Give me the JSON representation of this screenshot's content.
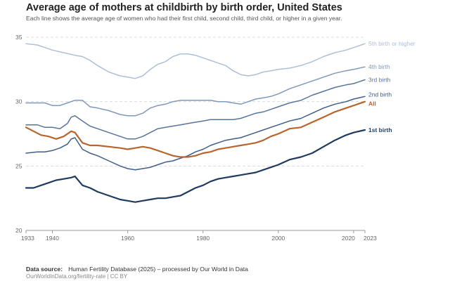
{
  "header": {
    "title": "Average age of mothers at childbirth by birth order, United States",
    "subtitle": "Each line shows the average age of women who had their first child, second child, third child, or higher in a given year."
  },
  "footer": {
    "source_label": "Data source:",
    "source_text": "Human Fertility Database (2025) – processed by Our World in Data",
    "link_text": "OurWorldInData.org/fertility-rate | CC BY"
  },
  "chart_data": {
    "type": "line",
    "title": "Average age of mothers at childbirth by birth order, United States",
    "xlabel": "",
    "ylabel": "",
    "xlim": [
      1933,
      2023
    ],
    "ylim": [
      20,
      35
    ],
    "x_ticks": [
      1933,
      1940,
      1960,
      1980,
      2000,
      2020,
      2023
    ],
    "y_ticks": [
      20,
      25,
      30,
      35
    ],
    "grid": "horizontal dashed",
    "legend": "line labels at right end",
    "series": [
      {
        "name": "5th birth or higher",
        "color": "#aebfd6",
        "points": [
          [
            1933,
            34.5
          ],
          [
            1936,
            34.4
          ],
          [
            1938,
            34.2
          ],
          [
            1940,
            34.0
          ],
          [
            1943,
            33.8
          ],
          [
            1946,
            33.6
          ],
          [
            1948,
            33.5
          ],
          [
            1950,
            33.2
          ],
          [
            1952,
            32.8
          ],
          [
            1955,
            32.3
          ],
          [
            1958,
            32.0
          ],
          [
            1960,
            31.9
          ],
          [
            1962,
            31.8
          ],
          [
            1964,
            32.0
          ],
          [
            1966,
            32.5
          ],
          [
            1968,
            32.9
          ],
          [
            1970,
            33.1
          ],
          [
            1972,
            33.5
          ],
          [
            1974,
            33.7
          ],
          [
            1976,
            33.7
          ],
          [
            1978,
            33.6
          ],
          [
            1980,
            33.4
          ],
          [
            1982,
            33.2
          ],
          [
            1984,
            33.0
          ],
          [
            1986,
            32.8
          ],
          [
            1988,
            32.4
          ],
          [
            1990,
            32.1
          ],
          [
            1992,
            32.0
          ],
          [
            1994,
            32.1
          ],
          [
            1996,
            32.3
          ],
          [
            1998,
            32.4
          ],
          [
            2000,
            32.5
          ],
          [
            2003,
            32.6
          ],
          [
            2006,
            32.8
          ],
          [
            2009,
            33.1
          ],
          [
            2012,
            33.5
          ],
          [
            2015,
            33.8
          ],
          [
            2018,
            34.0
          ],
          [
            2020,
            34.2
          ],
          [
            2023,
            34.5
          ]
        ]
      },
      {
        "name": "4th birth",
        "color": "#7f98ba",
        "points": [
          [
            1933,
            29.9
          ],
          [
            1935,
            29.9
          ],
          [
            1938,
            29.9
          ],
          [
            1940,
            29.7
          ],
          [
            1942,
            29.7
          ],
          [
            1944,
            29.9
          ],
          [
            1946,
            30.1
          ],
          [
            1948,
            30.1
          ],
          [
            1950,
            29.6
          ],
          [
            1952,
            29.5
          ],
          [
            1955,
            29.3
          ],
          [
            1958,
            29.0
          ],
          [
            1960,
            28.9
          ],
          [
            1962,
            28.9
          ],
          [
            1964,
            29.1
          ],
          [
            1966,
            29.5
          ],
          [
            1968,
            29.7
          ],
          [
            1970,
            29.8
          ],
          [
            1972,
            30.0
          ],
          [
            1974,
            30.1
          ],
          [
            1976,
            30.1
          ],
          [
            1978,
            30.1
          ],
          [
            1980,
            30.1
          ],
          [
            1982,
            30.1
          ],
          [
            1984,
            30.0
          ],
          [
            1986,
            30.0
          ],
          [
            1988,
            29.9
          ],
          [
            1990,
            29.8
          ],
          [
            1992,
            30.0
          ],
          [
            1994,
            30.2
          ],
          [
            1996,
            30.3
          ],
          [
            1998,
            30.4
          ],
          [
            2000,
            30.6
          ],
          [
            2003,
            31.0
          ],
          [
            2006,
            31.3
          ],
          [
            2009,
            31.6
          ],
          [
            2012,
            31.9
          ],
          [
            2015,
            32.2
          ],
          [
            2018,
            32.4
          ],
          [
            2020,
            32.5
          ],
          [
            2023,
            32.7
          ]
        ]
      },
      {
        "name": "3rd birth",
        "color": "#58749b",
        "points": [
          [
            1933,
            28.2
          ],
          [
            1936,
            28.2
          ],
          [
            1938,
            28.0
          ],
          [
            1940,
            28.0
          ],
          [
            1942,
            27.9
          ],
          [
            1944,
            28.3
          ],
          [
            1945,
            28.8
          ],
          [
            1946,
            28.9
          ],
          [
            1948,
            28.5
          ],
          [
            1950,
            28.1
          ],
          [
            1952,
            27.9
          ],
          [
            1955,
            27.6
          ],
          [
            1958,
            27.3
          ],
          [
            1960,
            27.1
          ],
          [
            1962,
            27.1
          ],
          [
            1964,
            27.3
          ],
          [
            1966,
            27.6
          ],
          [
            1968,
            27.9
          ],
          [
            1970,
            28.0
          ],
          [
            1972,
            28.1
          ],
          [
            1974,
            28.2
          ],
          [
            1976,
            28.3
          ],
          [
            1978,
            28.4
          ],
          [
            1980,
            28.5
          ],
          [
            1982,
            28.6
          ],
          [
            1984,
            28.6
          ],
          [
            1986,
            28.6
          ],
          [
            1988,
            28.6
          ],
          [
            1990,
            28.7
          ],
          [
            1992,
            28.9
          ],
          [
            1994,
            29.1
          ],
          [
            1996,
            29.2
          ],
          [
            1998,
            29.4
          ],
          [
            2000,
            29.6
          ],
          [
            2003,
            29.9
          ],
          [
            2006,
            30.1
          ],
          [
            2009,
            30.5
          ],
          [
            2012,
            30.8
          ],
          [
            2015,
            31.1
          ],
          [
            2018,
            31.3
          ],
          [
            2020,
            31.4
          ],
          [
            2023,
            31.7
          ]
        ]
      },
      {
        "name": "2nd birth",
        "color": "#3e5d88",
        "points": [
          [
            1933,
            26.0
          ],
          [
            1936,
            26.1
          ],
          [
            1938,
            26.1
          ],
          [
            1940,
            26.2
          ],
          [
            1942,
            26.4
          ],
          [
            1944,
            26.7
          ],
          [
            1945,
            27.1
          ],
          [
            1946,
            27.2
          ],
          [
            1948,
            26.3
          ],
          [
            1950,
            26.0
          ],
          [
            1952,
            25.8
          ],
          [
            1955,
            25.4
          ],
          [
            1958,
            25.0
          ],
          [
            1960,
            24.8
          ],
          [
            1962,
            24.7
          ],
          [
            1964,
            24.8
          ],
          [
            1966,
            24.9
          ],
          [
            1968,
            25.1
          ],
          [
            1970,
            25.3
          ],
          [
            1972,
            25.4
          ],
          [
            1974,
            25.6
          ],
          [
            1976,
            25.8
          ],
          [
            1978,
            26.1
          ],
          [
            1980,
            26.3
          ],
          [
            1982,
            26.6
          ],
          [
            1984,
            26.8
          ],
          [
            1986,
            27.0
          ],
          [
            1988,
            27.1
          ],
          [
            1990,
            27.2
          ],
          [
            1992,
            27.4
          ],
          [
            1994,
            27.6
          ],
          [
            1996,
            27.8
          ],
          [
            1998,
            28.0
          ],
          [
            2000,
            28.2
          ],
          [
            2003,
            28.5
          ],
          [
            2006,
            28.7
          ],
          [
            2009,
            29.1
          ],
          [
            2012,
            29.5
          ],
          [
            2015,
            29.8
          ],
          [
            2018,
            30.0
          ],
          [
            2020,
            30.2
          ],
          [
            2023,
            30.4
          ]
        ]
      },
      {
        "name": "All",
        "color": "#b7652d",
        "points": [
          [
            1933,
            28.0
          ],
          [
            1935,
            27.7
          ],
          [
            1937,
            27.4
          ],
          [
            1939,
            27.3
          ],
          [
            1941,
            27.1
          ],
          [
            1943,
            27.3
          ],
          [
            1945,
            27.7
          ],
          [
            1946,
            27.6
          ],
          [
            1948,
            26.8
          ],
          [
            1950,
            26.6
          ],
          [
            1952,
            26.6
          ],
          [
            1955,
            26.5
          ],
          [
            1958,
            26.4
          ],
          [
            1960,
            26.3
          ],
          [
            1962,
            26.4
          ],
          [
            1964,
            26.5
          ],
          [
            1966,
            26.4
          ],
          [
            1968,
            26.2
          ],
          [
            1970,
            26.0
          ],
          [
            1972,
            25.8
          ],
          [
            1974,
            25.7
          ],
          [
            1976,
            25.7
          ],
          [
            1978,
            25.8
          ],
          [
            1980,
            26.0
          ],
          [
            1982,
            26.1
          ],
          [
            1984,
            26.3
          ],
          [
            1986,
            26.4
          ],
          [
            1988,
            26.5
          ],
          [
            1990,
            26.6
          ],
          [
            1992,
            26.7
          ],
          [
            1994,
            26.8
          ],
          [
            1996,
            27.0
          ],
          [
            1998,
            27.3
          ],
          [
            2000,
            27.5
          ],
          [
            2003,
            27.9
          ],
          [
            2006,
            28.0
          ],
          [
            2009,
            28.4
          ],
          [
            2012,
            28.8
          ],
          [
            2015,
            29.2
          ],
          [
            2018,
            29.5
          ],
          [
            2020,
            29.7
          ],
          [
            2023,
            30.0
          ]
        ]
      },
      {
        "name": "1st birth",
        "color": "#1f3a5f",
        "points": [
          [
            1933,
            23.3
          ],
          [
            1935,
            23.3
          ],
          [
            1937,
            23.5
          ],
          [
            1939,
            23.7
          ],
          [
            1941,
            23.9
          ],
          [
            1943,
            24.0
          ],
          [
            1945,
            24.1
          ],
          [
            1946,
            24.2
          ],
          [
            1948,
            23.5
          ],
          [
            1950,
            23.3
          ],
          [
            1952,
            23.0
          ],
          [
            1955,
            22.7
          ],
          [
            1958,
            22.4
          ],
          [
            1960,
            22.3
          ],
          [
            1962,
            22.2
          ],
          [
            1964,
            22.3
          ],
          [
            1966,
            22.4
          ],
          [
            1968,
            22.5
          ],
          [
            1970,
            22.5
          ],
          [
            1972,
            22.6
          ],
          [
            1974,
            22.7
          ],
          [
            1976,
            23.0
          ],
          [
            1978,
            23.3
          ],
          [
            1980,
            23.5
          ],
          [
            1982,
            23.8
          ],
          [
            1984,
            24.0
          ],
          [
            1986,
            24.1
          ],
          [
            1988,
            24.2
          ],
          [
            1990,
            24.3
          ],
          [
            1992,
            24.4
          ],
          [
            1994,
            24.5
          ],
          [
            1996,
            24.7
          ],
          [
            1998,
            24.9
          ],
          [
            2000,
            25.1
          ],
          [
            2003,
            25.5
          ],
          [
            2006,
            25.7
          ],
          [
            2009,
            26.0
          ],
          [
            2012,
            26.5
          ],
          [
            2015,
            27.0
          ],
          [
            2018,
            27.4
          ],
          [
            2020,
            27.6
          ],
          [
            2023,
            27.8
          ]
        ]
      }
    ]
  }
}
